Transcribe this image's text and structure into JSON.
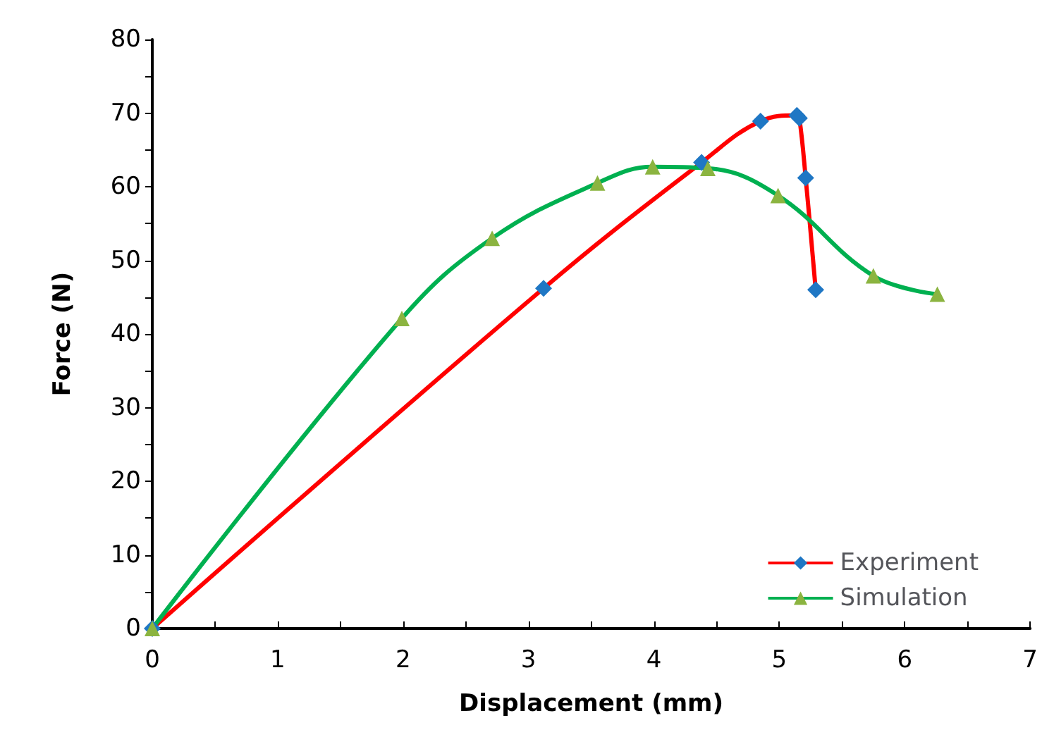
{
  "chart_data": {
    "type": "line",
    "xlabel": "Displacement (mm)",
    "ylabel": "Force (N)",
    "xlim": [
      0,
      7
    ],
    "ylim": [
      0,
      80
    ],
    "xticks": [
      0,
      {
        "value": 0.5,
        "label": null
      },
      1,
      {
        "value": 1.5,
        "label": null
      },
      2,
      {
        "value": 2.5,
        "label": null
      },
      3,
      {
        "value": 3.5,
        "label": null
      },
      4,
      {
        "value": 4.5,
        "label": null
      },
      5,
      {
        "value": 5.5,
        "label": null
      },
      6,
      {
        "value": 6.5,
        "label": null
      },
      7
    ],
    "yticks": [
      0,
      {
        "value": 5,
        "label": null
      },
      10,
      {
        "value": 15,
        "label": null
      },
      20,
      {
        "value": 25,
        "label": null
      },
      30,
      {
        "value": 35,
        "label": null
      },
      40,
      {
        "value": 45,
        "label": null
      },
      50,
      {
        "value": 55,
        "label": null
      },
      60,
      {
        "value": 65,
        "label": null
      },
      70,
      {
        "value": 75,
        "label": null
      },
      80
    ],
    "legend": "bottom right",
    "grid": false,
    "series": [
      {
        "name": "Experiment",
        "color": "#ff0000",
        "marker": "diamond",
        "x": [
          0,
          3.12,
          4.38,
          4.85,
          5.14,
          5.16,
          5.21,
          5.29
        ],
        "values": [
          0,
          46.2,
          63.3,
          68.9,
          69.7,
          69.3,
          61.2,
          46.0
        ]
      },
      {
        "name": "Simulation",
        "color": "#00b050",
        "marker": "triangle",
        "x": [
          0,
          1.99,
          2.71,
          3.55,
          3.99,
          4.43,
          4.99,
          5.75,
          6.26
        ],
        "values": [
          0,
          42.1,
          53.0,
          60.5,
          62.7,
          62.5,
          58.8,
          47.9,
          45.4
        ]
      }
    ]
  }
}
